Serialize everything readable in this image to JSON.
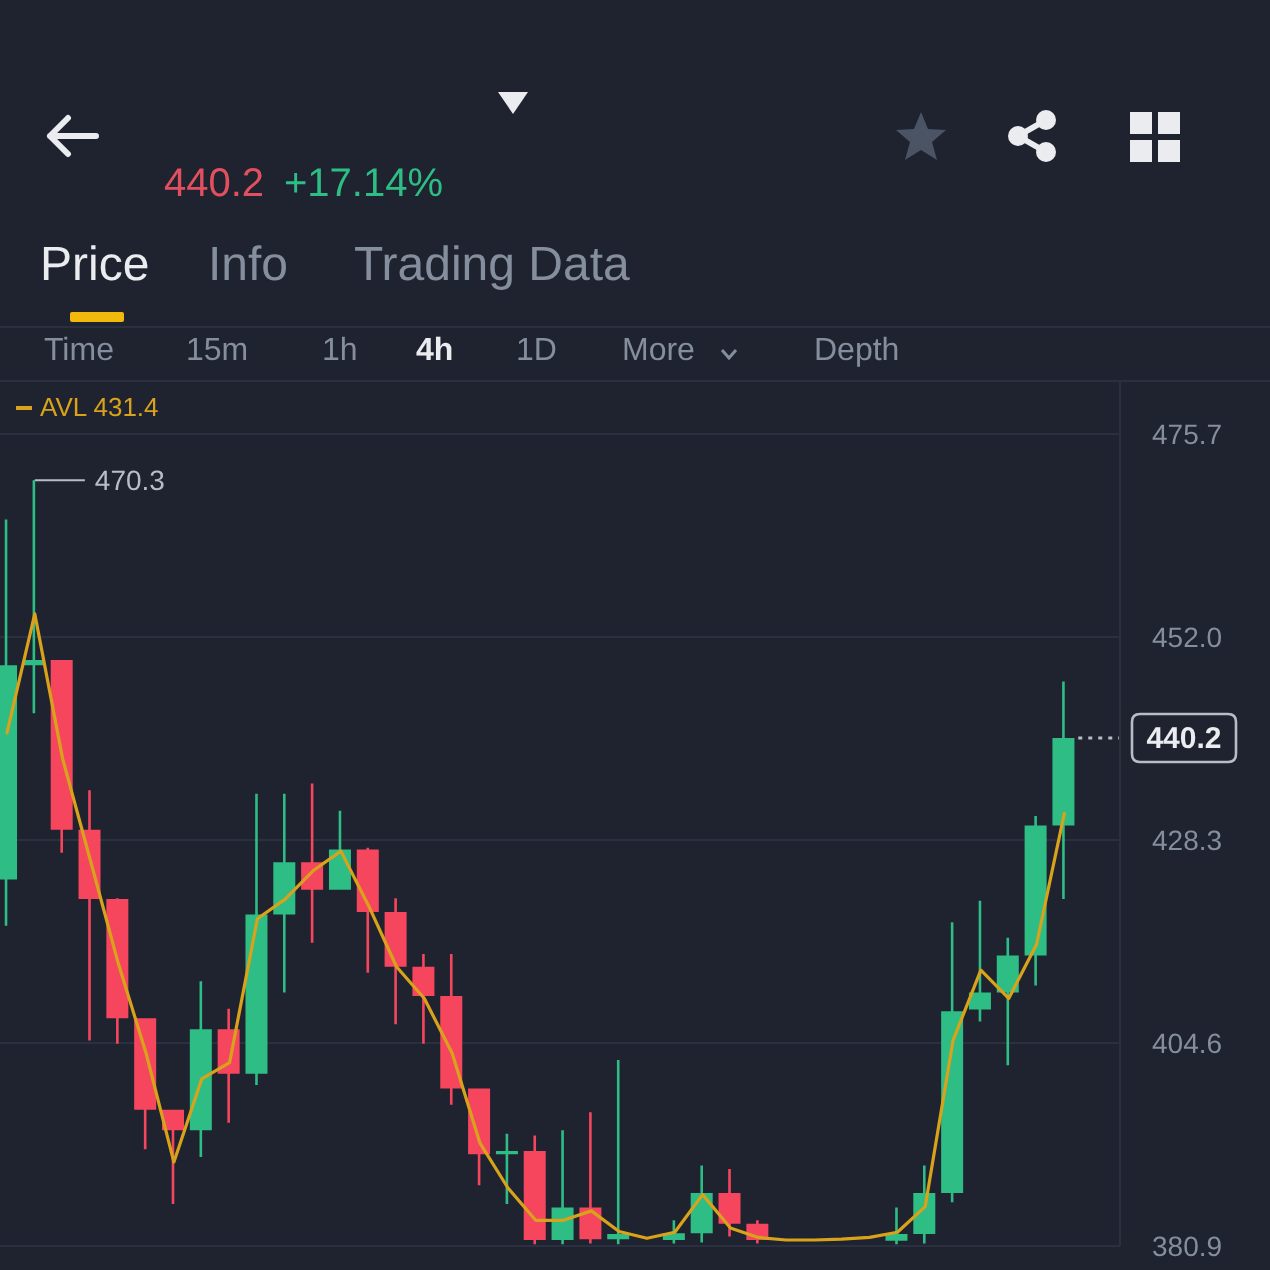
{
  "chart_data": {
    "type": "candlestick",
    "annotations": [
      "440.2",
      "+17.14%",
      "Price",
      "Info",
      "Trading Data",
      "Time",
      "15m",
      "1h",
      "4h",
      "1D",
      "More",
      "Depth",
      "470.3"
    ],
    "categories": [
      null,
      null,
      null,
      null,
      null,
      null,
      null,
      null,
      null,
      null,
      null,
      null,
      null,
      null,
      null,
      null,
      null,
      null,
      null,
      null,
      null,
      null,
      null,
      null,
      null,
      null,
      null,
      null,
      null,
      null,
      null,
      null,
      null,
      null,
      null,
      null,
      null,
      null,
      null
    ],
    "ohlc": [
      [
        423.7,
        465.7,
        418.3,
        448.7
      ],
      [
        448.7,
        470.3,
        443.1,
        449.3
      ],
      [
        449.3,
        449.3,
        426.8,
        429.5
      ],
      [
        429.5,
        434.1,
        404.9,
        421.4
      ],
      [
        421.4,
        421.5,
        404.5,
        407.5
      ],
      [
        407.5,
        407.5,
        392.2,
        396.8
      ],
      [
        396.8,
        396.8,
        385.8,
        394.4
      ],
      [
        394.4,
        411.8,
        391.3,
        406.2
      ],
      [
        406.2,
        408.6,
        395.3,
        401.0
      ],
      [
        401.0,
        433.7,
        399.7,
        419.6
      ],
      [
        419.6,
        433.7,
        410.5,
        425.7
      ],
      [
        425.7,
        434.9,
        416.3,
        422.5
      ],
      [
        422.5,
        431.7,
        422.5,
        427.2
      ],
      [
        427.2,
        427.4,
        412.8,
        419.9
      ],
      [
        419.9,
        421.5,
        406.8,
        413.5
      ],
      [
        413.5,
        415.0,
        404.5,
        410.1
      ],
      [
        410.1,
        415.0,
        397.4,
        399.3
      ],
      [
        399.3,
        399.3,
        388.0,
        391.6
      ],
      [
        391.6,
        394.0,
        385.8,
        392.0
      ],
      [
        392.0,
        393.8,
        381.1,
        381.6
      ],
      [
        381.6,
        394.4,
        381.1,
        385.4
      ],
      [
        385.4,
        396.5,
        381.2,
        381.7
      ],
      [
        381.7,
        402.6,
        381.1,
        382.3
      ],
      null,
      [
        381.6,
        383.9,
        381.2,
        382.4
      ],
      [
        382.4,
        390.3,
        381.3,
        387.1
      ],
      [
        387.1,
        389.9,
        382.0,
        383.5
      ],
      [
        383.5,
        383.9,
        381.2,
        381.6
      ],
      null,
      null,
      null,
      null,
      [
        381.5,
        385.4,
        381.1,
        382.3
      ],
      [
        382.3,
        390.3,
        381.2,
        387.1
      ],
      [
        387.1,
        418.7,
        386.0,
        408.3
      ],
      [
        408.5,
        421.2,
        407.1,
        410.5
      ],
      [
        410.5,
        416.9,
        402.0,
        414.8
      ],
      [
        414.8,
        431.1,
        411.3,
        430.0
      ],
      [
        430.0,
        446.8,
        421.4,
        440.2
      ]
    ],
    "colors": [
      "#2ebd85",
      "#2ebd85",
      "#f6465d",
      "#f6465d",
      "#f6465d",
      "#f6465d",
      "#f6465d",
      "#2ebd85",
      "#f6465d",
      "#2ebd85",
      "#2ebd85",
      "#f6465d",
      "#2ebd85",
      "#f6465d",
      "#f6465d",
      "#f6465d",
      "#f6465d",
      "#f6465d",
      "#2ebd85",
      "#f6465d",
      "#2ebd85",
      "#f6465d",
      "#2ebd85",
      null,
      "#2ebd85",
      "#2ebd85",
      "#f6465d",
      "#f6465d",
      null,
      null,
      null,
      null,
      "#2ebd85",
      "#2ebd85",
      "#2ebd85",
      "#2ebd85",
      "#2ebd85",
      "#2ebd85",
      "#2ebd85"
    ],
    "series": [
      {
        "name": "AVL 431.4",
        "type": "line",
        "color": "#d9a21b",
        "values": [
          440.8,
          454.7,
          437.8,
          425.9,
          413.9,
          403.4,
          390.7,
          400.4,
          402.3,
          419.1,
          421.4,
          424.7,
          427.0,
          420.6,
          413.5,
          409.8,
          403.4,
          392.9,
          387.7,
          383.9,
          383.9,
          385.0,
          382.6,
          381.8,
          382.5,
          386.9,
          383.0,
          381.9,
          381.6,
          381.6,
          381.7,
          381.9,
          382.5,
          385.5,
          404.9,
          413.1,
          409.8,
          416.1,
          431.4
        ]
      }
    ],
    "ylim": [
      380.9,
      482
    ],
    "yticks": [
      380.9,
      404.6,
      428.3,
      {
        "value": 452,
        "label": "452.0"
      },
      475.7
    ],
    "grid": "y",
    "legend": "top left",
    "ref_lines": [
      {
        "axis": "y",
        "value": 440.2,
        "label": "440.2",
        "line_style": "dotted",
        "color": "#b7bdc6"
      }
    ]
  }
}
